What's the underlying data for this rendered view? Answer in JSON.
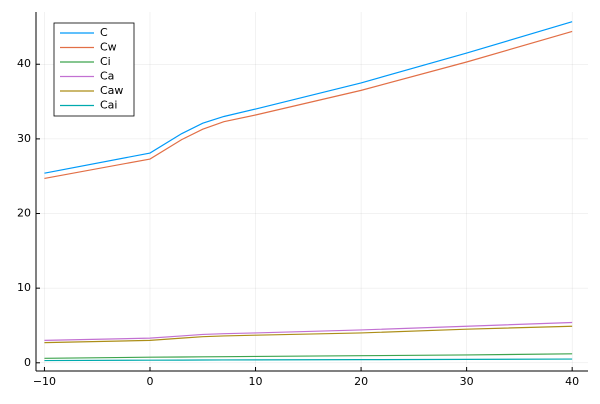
{
  "chart_data": {
    "type": "line",
    "x": [
      -10,
      0,
      3,
      5,
      7,
      10,
      20,
      30,
      40
    ],
    "series": [
      {
        "name": "C",
        "color": "#009af9",
        "values": [
          25.4,
          28.1,
          30.7,
          32.1,
          33.0,
          34.0,
          37.5,
          41.5,
          45.7
        ]
      },
      {
        "name": "Cw",
        "color": "#e26f46",
        "values": [
          24.7,
          27.3,
          29.9,
          31.3,
          32.3,
          33.2,
          36.5,
          40.3,
          44.4
        ]
      },
      {
        "name": "Ci",
        "color": "#3ea44e",
        "values": [
          0.6,
          0.75,
          0.78,
          0.8,
          0.82,
          0.85,
          0.95,
          1.05,
          1.2
        ]
      },
      {
        "name": "Ca",
        "color": "#c271d2",
        "values": [
          3.0,
          3.3,
          3.6,
          3.8,
          3.9,
          4.0,
          4.4,
          4.9,
          5.4
        ]
      },
      {
        "name": "Caw",
        "color": "#ac8e18",
        "values": [
          2.7,
          3.0,
          3.3,
          3.5,
          3.6,
          3.7,
          4.0,
          4.5,
          4.9
        ]
      },
      {
        "name": "Cai",
        "color": "#00aaae",
        "values": [
          0.3,
          0.35,
          0.36,
          0.37,
          0.38,
          0.39,
          0.42,
          0.46,
          0.5
        ]
      }
    ],
    "xlim": [
      -10.8,
      41.5
    ],
    "ylim": [
      -1.1,
      47
    ],
    "xticks": [
      {
        "value": -10,
        "label": "−10"
      },
      0,
      10,
      20,
      30,
      40
    ],
    "yticks": [
      0,
      10,
      20,
      30,
      40
    ],
    "grid": true,
    "legend": "top-left"
  }
}
